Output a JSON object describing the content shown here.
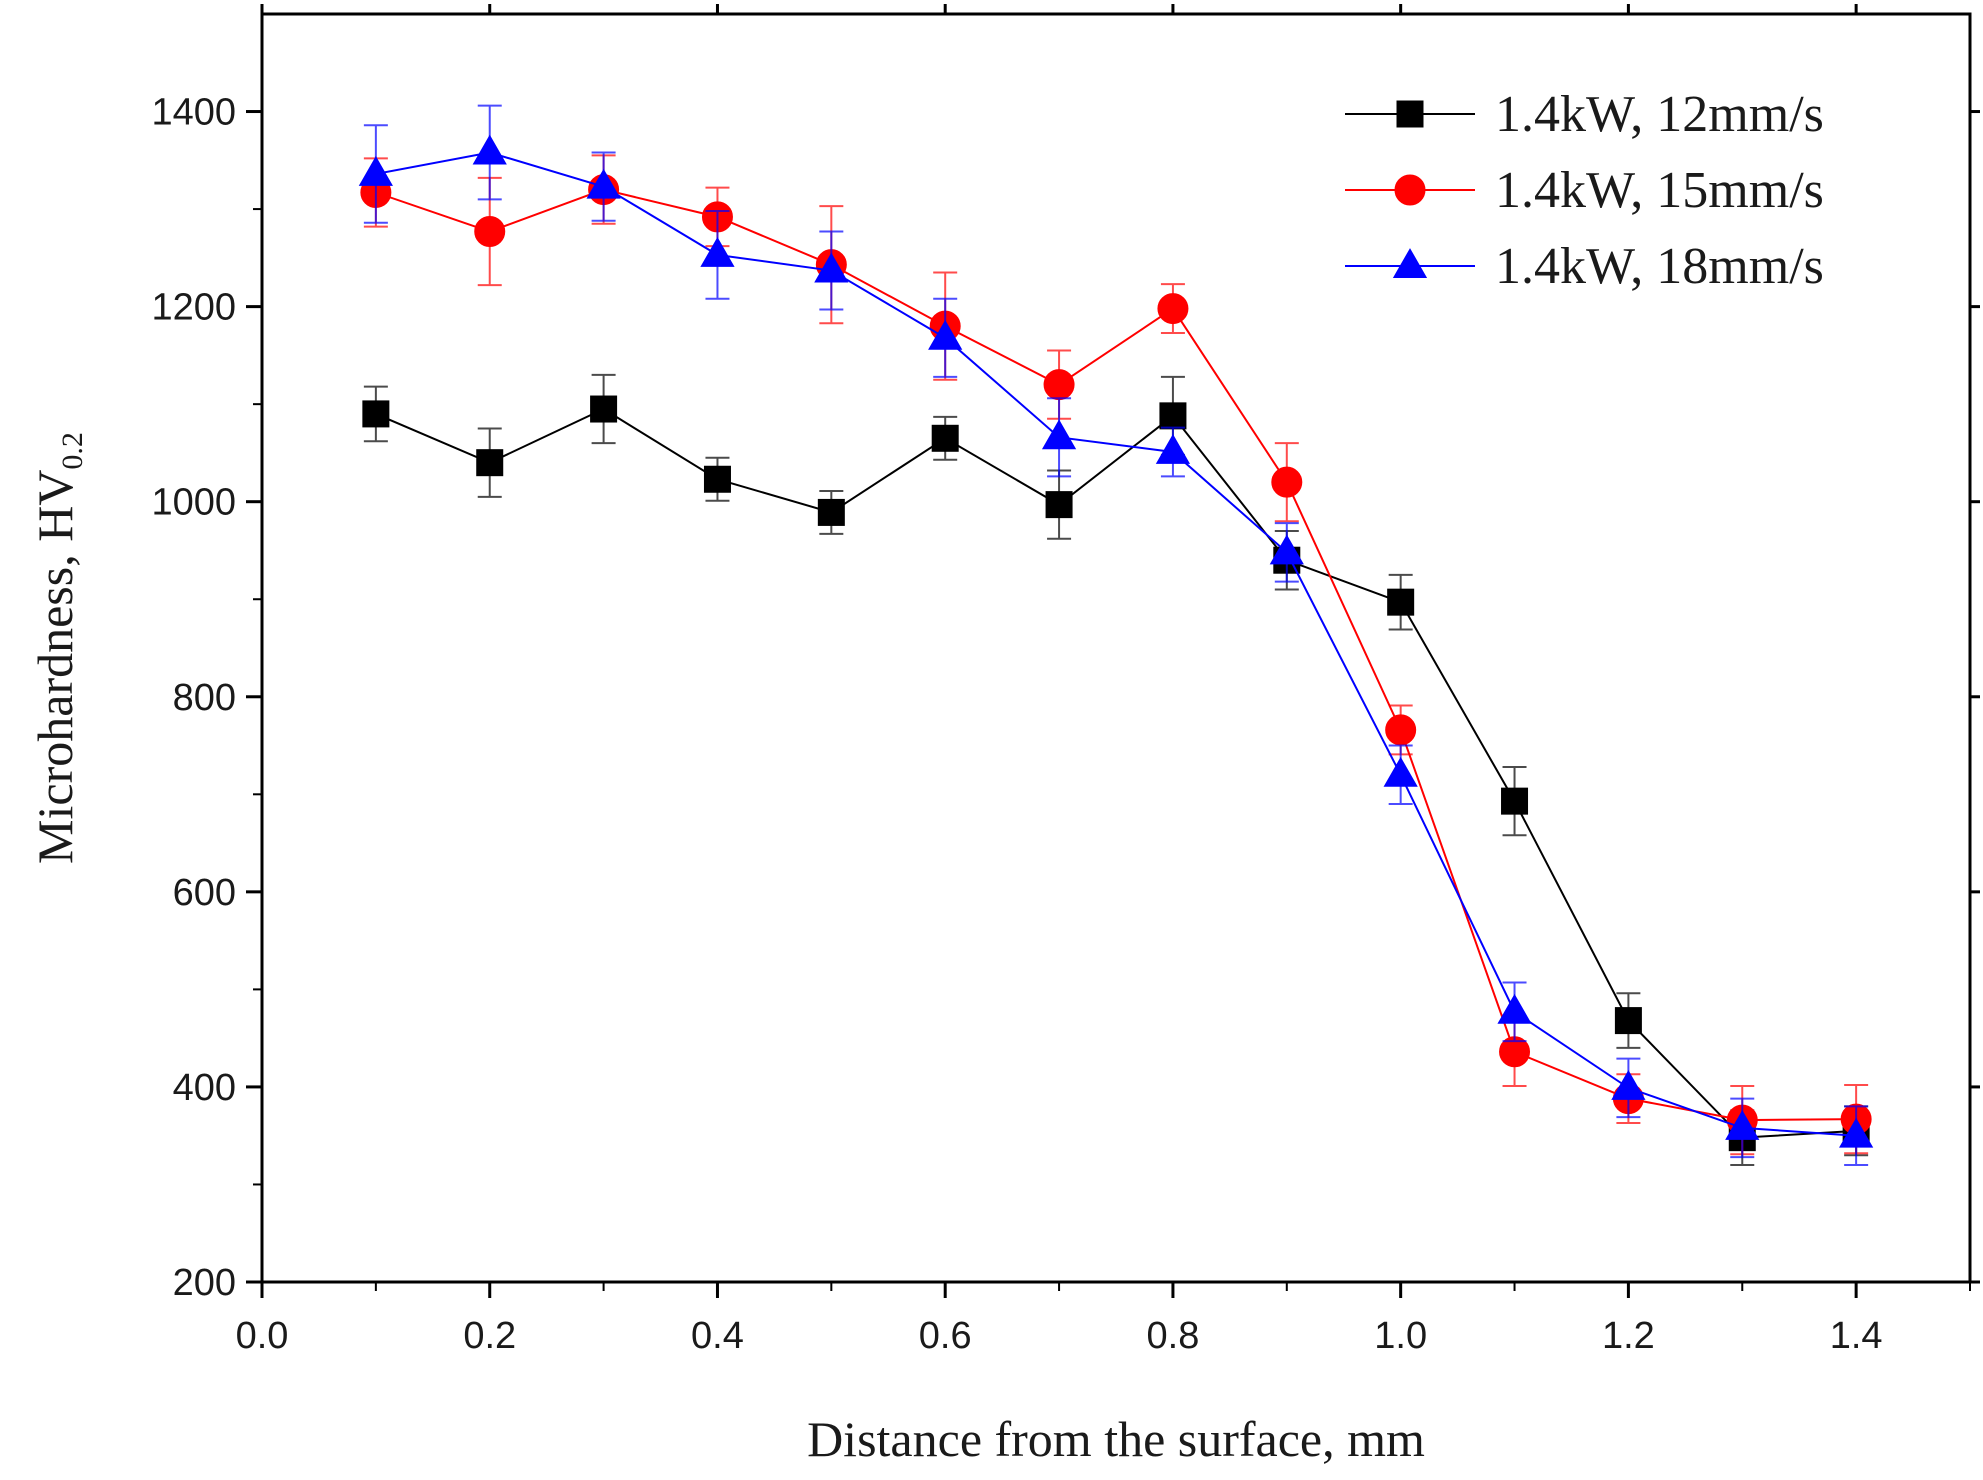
{
  "chart_data": {
    "type": "line",
    "xlabel": "Distance from the surface,  mm",
    "ylabel": "Microhardness,  HV",
    "ylabel_subscript": "0.2",
    "xlim": [
      0.0,
      1.5
    ],
    "ylim": [
      200,
      1500
    ],
    "x_ticks": [
      "0.0",
      "0.2",
      "0.4",
      "0.6",
      "0.8",
      "1.0",
      "1.2",
      "1.4"
    ],
    "y_ticks": [
      "200",
      "400",
      "600",
      "800",
      "1000",
      "1200",
      "1400"
    ],
    "grid": false,
    "legend_position": "top-right",
    "x": [
      0.1,
      0.2,
      0.3,
      0.4,
      0.5,
      0.6,
      0.7,
      0.8,
      0.9,
      1.0,
      1.1,
      1.2,
      1.3,
      1.4
    ],
    "series": [
      {
        "name": "1.4kW, 12mm/s",
        "color": "#000000",
        "marker": "square",
        "values": [
          1090,
          1040,
          1095,
          1023,
          989,
          1065,
          997,
          1088,
          940,
          897,
          693,
          468,
          348,
          355
        ],
        "errors": [
          28,
          35,
          35,
          22,
          22,
          22,
          35,
          40,
          30,
          28,
          35,
          28,
          28,
          25
        ]
      },
      {
        "name": "1.4kW, 15mm/s",
        "color": "#ff0000",
        "marker": "circle",
        "values": [
          1317,
          1277,
          1320,
          1292,
          1243,
          1180,
          1120,
          1198,
          1020,
          766,
          436,
          388,
          366,
          367
        ],
        "errors": [
          35,
          55,
          35,
          30,
          60,
          55,
          35,
          25,
          40,
          25,
          35,
          25,
          35,
          35
        ]
      },
      {
        "name": "1.4kW, 18mm/s",
        "color": "#0000ff",
        "marker": "triangle",
        "values": [
          1336,
          1358,
          1323,
          1253,
          1237,
          1168,
          1066,
          1051,
          948,
          720,
          477,
          399,
          358,
          350
        ],
        "errors": [
          50,
          48,
          35,
          45,
          40,
          40,
          40,
          25,
          30,
          30,
          30,
          30,
          30,
          30
        ]
      }
    ]
  }
}
